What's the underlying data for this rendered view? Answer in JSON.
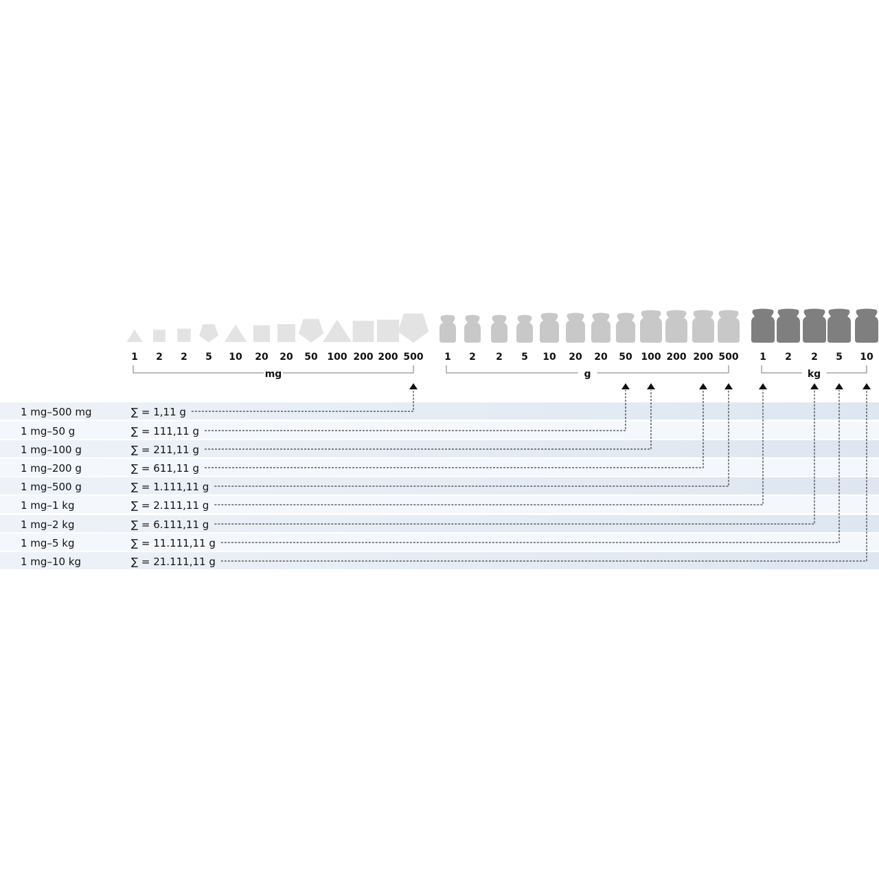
{
  "groups": [
    {
      "unit": "mg",
      "color": "#e3e3e3",
      "weights": [
        {
          "label": "1",
          "shape": "triangle"
        },
        {
          "label": "2",
          "shape": "square"
        },
        {
          "label": "2",
          "shape": "square"
        },
        {
          "label": "5",
          "shape": "pentagon"
        },
        {
          "label": "10",
          "shape": "triangle"
        },
        {
          "label": "20",
          "shape": "square"
        },
        {
          "label": "20",
          "shape": "square"
        },
        {
          "label": "50",
          "shape": "pentagon"
        },
        {
          "label": "100",
          "shape": "triangle"
        },
        {
          "label": "200",
          "shape": "square"
        },
        {
          "label": "200",
          "shape": "square"
        },
        {
          "label": "500",
          "shape": "pentagon"
        }
      ]
    },
    {
      "unit": "g",
      "color": "#c8c8c8",
      "weights": [
        {
          "label": "1",
          "shape": "cylinder-weight"
        },
        {
          "label": "2",
          "shape": "cylinder-weight"
        },
        {
          "label": "2",
          "shape": "cylinder-weight"
        },
        {
          "label": "5",
          "shape": "cylinder-weight"
        },
        {
          "label": "10",
          "shape": "cylinder-weight"
        },
        {
          "label": "20",
          "shape": "cylinder-weight"
        },
        {
          "label": "20",
          "shape": "cylinder-weight"
        },
        {
          "label": "50",
          "shape": "cylinder-weight"
        },
        {
          "label": "100",
          "shape": "cylinder-weight"
        },
        {
          "label": "200",
          "shape": "cylinder-weight"
        },
        {
          "label": "200",
          "shape": "cylinder-weight"
        },
        {
          "label": "500",
          "shape": "cylinder-weight"
        }
      ]
    },
    {
      "unit": "kg",
      "color": "#7f7f7f",
      "weights": [
        {
          "label": "1",
          "shape": "cylinder-weight"
        },
        {
          "label": "2",
          "shape": "cylinder-weight"
        },
        {
          "label": "2",
          "shape": "cylinder-weight"
        },
        {
          "label": "5",
          "shape": "cylinder-weight"
        },
        {
          "label": "10",
          "shape": "cylinder-weight"
        }
      ]
    }
  ],
  "sets": [
    {
      "range": "1 mg–500 mg",
      "sum": "∑ = 1,11 g",
      "target": "mg 500"
    },
    {
      "range": "1 mg–50 g",
      "sum": "∑ = 111,11 g",
      "target": "g 50"
    },
    {
      "range": "1 mg–100 g",
      "sum": "∑ = 211,11 g",
      "target": "g 100"
    },
    {
      "range": "1 mg–200 g",
      "sum": "∑ = 611,11 g",
      "target": "g 200"
    },
    {
      "range": "1 mg–500 g",
      "sum": "∑ = 1.111,11 g",
      "target": "g 500"
    },
    {
      "range": "1 mg–1 kg",
      "sum": "∑ = 2.111,11 g",
      "target": "kg 1"
    },
    {
      "range": "1 mg–2 kg",
      "sum": "∑ = 6.111,11 g",
      "target": "kg 2"
    },
    {
      "range": "1 mg–5 kg",
      "sum": "∑ = 11.111,11 g",
      "target": "kg 5"
    },
    {
      "range": "1 mg–10 kg",
      "sum": "∑ = 21.111,11 g",
      "target": "kg 10"
    }
  ],
  "row_band_color": "#e2e9f3"
}
